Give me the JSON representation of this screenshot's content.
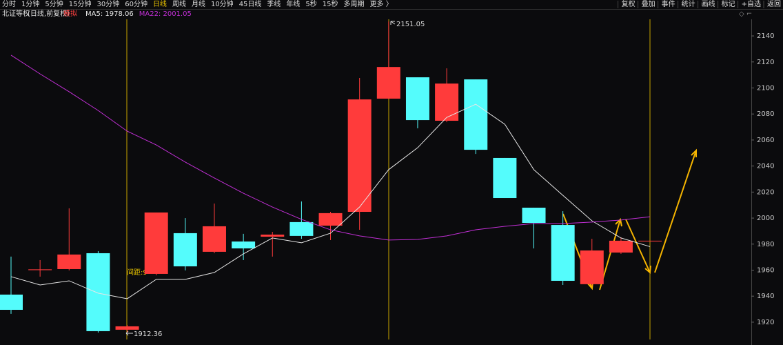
{
  "toolbar": {
    "left": [
      "分时",
      "1分钟",
      "5分钟",
      "15分钟",
      "30分钟",
      "60分钟",
      "日线",
      "周线",
      "月线",
      "10分钟",
      "45日线",
      "季线",
      "年线",
      "5秒",
      "15秒",
      "多周期",
      "更多 〉"
    ],
    "active_index": 6,
    "right": [
      "复权",
      "叠加",
      "事件",
      "统计",
      "画线",
      "标记",
      "+自选",
      "返回"
    ]
  },
  "header": {
    "title": "北证等权",
    "mode": "(日线,前复权)",
    "badge": "模拟"
  },
  "chart_data": {
    "type": "candlestick",
    "ylim": [
      1906.7,
      2151.7
    ],
    "yticks": [
      1920,
      1940,
      1960,
      1980,
      2000,
      2020,
      2040,
      2060,
      2080,
      2100,
      2120,
      2140
    ],
    "up_color": "#ff3b3b",
    "down_color": "#54fcfc",
    "open": [
      1941.2,
      1960.0,
      1960.8,
      1973.0,
      1914.2,
      1957.1,
      1988.4,
      1974.1,
      1982.0,
      1985.7,
      1996.9,
      1994.2,
      2004.8,
      2091.8,
      2108.2,
      2074.8,
      2106.6,
      2046.2,
      2008.0,
      1994.7,
      1949.2,
      1973.5,
      1982.6
    ],
    "high": [
      1970.4,
      1967.7,
      2007.5,
      1974.6,
      1917.9,
      2004.3,
      2000.0,
      2011.2,
      1987.9,
      1989.4,
      2012.8,
      2004.8,
      2107.7,
      2151.05,
      2108.2,
      2115.1,
      2106.6,
      2046.2,
      2008.0,
      2005.3,
      1984.1,
      1985.2,
      1982.6
    ],
    "low": [
      1926.4,
      1955.0,
      1959.8,
      1912.0,
      1912.36,
      1956.0,
      1959.8,
      1973.0,
      1967.7,
      1970.4,
      1984.1,
      1983.1,
      1991.0,
      2091.8,
      2069.0,
      2073.7,
      2049.3,
      2015.4,
      1976.7,
      1948.6,
      1948.1,
      1972.5,
      1982.6
    ],
    "close": [
      1929.5,
      1960.6,
      1972.0,
      1913.1,
      1916.8,
      2004.3,
      1962.9,
      1993.7,
      1976.7,
      1987.3,
      1986.3,
      2003.8,
      2091.2,
      2116.1,
      2075.3,
      2103.4,
      2052.5,
      2015.4,
      1996.3,
      1951.8,
      1975.1,
      1982.6,
      1982.6
    ],
    "series": [
      {
        "name": "MA5: 1978.06",
        "color": "#e6e6e6",
        "values": [
          1955.0,
          1948.6,
          1951.8,
          1942.3,
          1938.0,
          1952.9,
          1952.9,
          1958.2,
          1972.5,
          1984.7,
          1981.0,
          1988.4,
          2008.5,
          2037.2,
          2054.1,
          2077.4,
          2087.5,
          2072.1,
          2037.2,
          2017.5,
          1997.9,
          1984.7,
          1978.06
        ]
      },
      {
        "name": "MA22: 2001.05",
        "color": "#c22fd6",
        "values": [
          2125.2,
          2110.8,
          2097.1,
          2082.7,
          2066.8,
          2056.2,
          2043.0,
          2030.8,
          2019.1,
          2008.5,
          1999.0,
          1991.0,
          1986.3,
          1983.1,
          1983.6,
          1986.3,
          1991.0,
          1993.7,
          1995.8,
          1995.8,
          1996.9,
          1998.5,
          2001.05
        ]
      }
    ],
    "annotations": [
      "2151.05",
      "1912.36",
      "间距:9"
    ]
  }
}
